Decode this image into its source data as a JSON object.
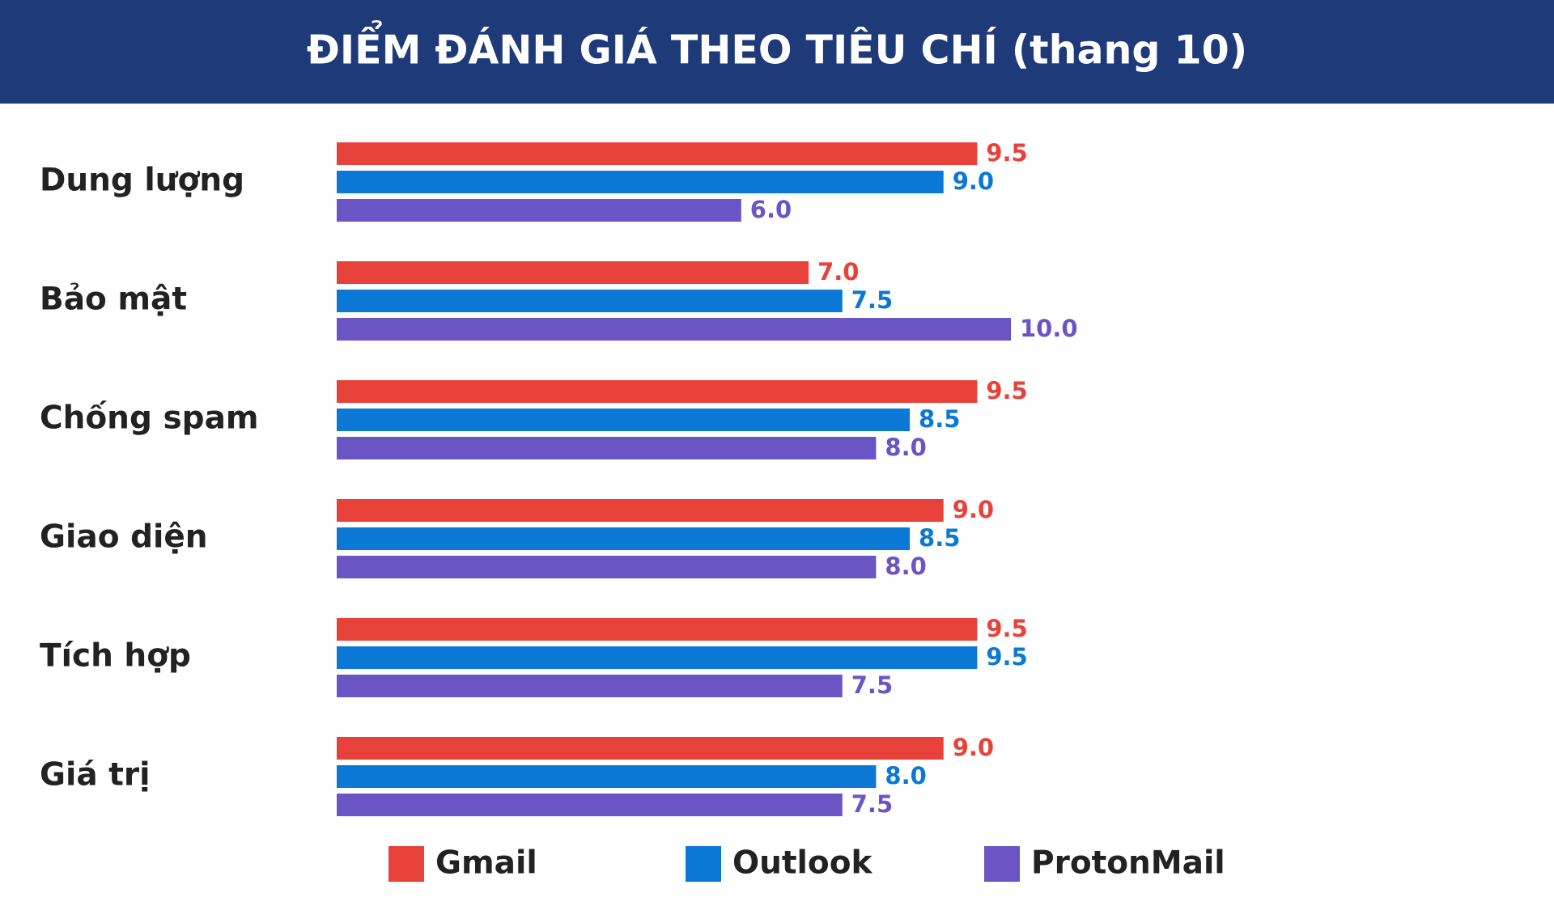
{
  "chart_data": {
    "type": "bar",
    "orientation": "horizontal",
    "title": "ĐIỂM ĐÁNH GIÁ THEO TIÊU CHÍ (thang 10)",
    "categories": [
      "Dung lượng",
      "Bảo mật",
      "Chống spam",
      "Giao diện",
      "Tích hợp",
      "Giá trị"
    ],
    "series": [
      {
        "name": "Gmail",
        "color": "#e8413a",
        "values": [
          9.5,
          7,
          9.5,
          9,
          9.5,
          9
        ],
        "value_labels": [
          "9.5",
          "7.0",
          "9.5",
          "9.0",
          "9.5",
          "9.0"
        ]
      },
      {
        "name": "Outlook",
        "color": "#0a78d4",
        "values": [
          9,
          7.5,
          8.5,
          8.5,
          9.5,
          8
        ],
        "value_labels": [
          "9.0",
          "7.5",
          "8.5",
          "8.5",
          "9.5",
          "8.0"
        ]
      },
      {
        "name": "ProtonMail",
        "color": "#6b55c4",
        "values": [
          6,
          10,
          8,
          8,
          7.5,
          7.5
        ],
        "value_labels": [
          "6.0",
          "10.0",
          "8.0",
          "8.0",
          "7.5",
          "7.5"
        ]
      }
    ],
    "legend": "bottom"
  }
}
